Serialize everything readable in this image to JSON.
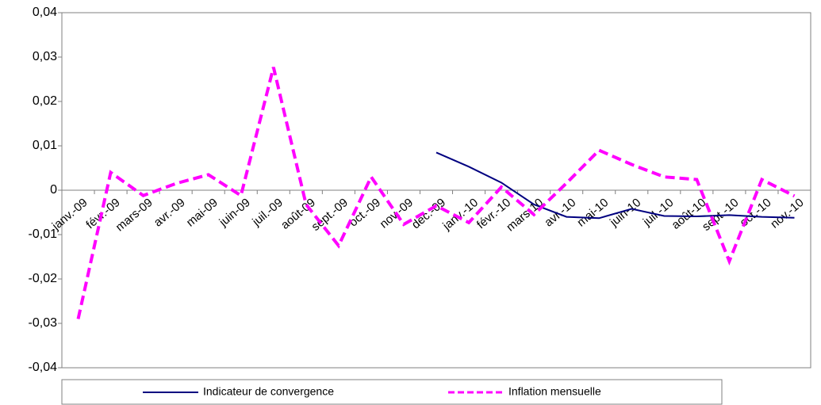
{
  "chart_data": {
    "type": "line",
    "categories": [
      "janv.-09",
      "févr.-09",
      "mars-09",
      "avr.-09",
      "mai-09",
      "juin-09",
      "juil.-09",
      "août-09",
      "sept.-09",
      "oct.-09",
      "nov.-09",
      "déc.-09",
      "janv.-10",
      "févr.-10",
      "mars-10",
      "avr.-10",
      "mai-10",
      "juin-10",
      "juil.-10",
      "août-10",
      "sept.-10",
      "oct.-10",
      "nov.-10"
    ],
    "series": [
      {
        "name": "Indicateur de convergence",
        "color": "#000080",
        "dash": false,
        "values": [
          null,
          null,
          null,
          null,
          null,
          null,
          null,
          null,
          null,
          null,
          null,
          0.0085,
          0.0053,
          0.0017,
          -0.0032,
          -0.006,
          -0.0063,
          -0.0042,
          -0.0058,
          -0.0059,
          -0.0056,
          -0.006,
          -0.0062
        ]
      },
      {
        "name": "Inflation mensuelle",
        "color": "#ff00ff",
        "dash": true,
        "values": [
          -0.029,
          0.004,
          -0.0012,
          0.0015,
          0.0035,
          -0.0012,
          0.0277,
          -0.0032,
          -0.0125,
          0.003,
          -0.0077,
          -0.0035,
          -0.0073,
          0.0007,
          -0.0055,
          0.0016,
          0.009,
          0.0058,
          0.003,
          0.0024,
          -0.016,
          0.0024,
          -0.0013
        ]
      }
    ],
    "ylim": [
      -0.04,
      0.04
    ],
    "yticks": [
      {
        "value": -0.04,
        "label": "-0,04"
      },
      {
        "value": -0.03,
        "label": "-0,03"
      },
      {
        "value": -0.02,
        "label": "-0,02"
      },
      {
        "value": -0.01,
        "label": "-0,01"
      },
      0,
      {
        "value": 0.01,
        "label": "0,01"
      },
      {
        "value": 0.02,
        "label": "0,02"
      },
      {
        "value": 0.03,
        "label": "0,03"
      },
      {
        "value": 0.04,
        "label": "0,04"
      }
    ],
    "legend": "bottom"
  }
}
